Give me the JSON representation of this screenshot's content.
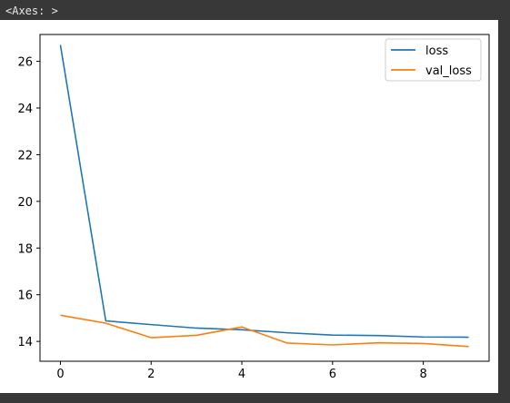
{
  "output": {
    "repr_text": "<Axes: >"
  },
  "chart_data": {
    "type": "line",
    "title": "",
    "xlabel": "",
    "ylabel": "",
    "x": [
      0,
      1,
      2,
      3,
      4,
      5,
      6,
      7,
      8,
      9
    ],
    "xlim": [
      -0.45,
      9.45
    ],
    "ylim": [
      13.15,
      27.15
    ],
    "xticks": [
      0,
      2,
      4,
      6,
      8
    ],
    "yticks": [
      14,
      16,
      18,
      20,
      22,
      24,
      26
    ],
    "grid": false,
    "legend_position": "upper right",
    "series": [
      {
        "name": "loss",
        "color": "#1f77b4",
        "values": [
          26.7,
          14.88,
          14.72,
          14.57,
          14.5,
          14.37,
          14.27,
          14.25,
          14.19,
          14.18
        ]
      },
      {
        "name": "val_loss",
        "color": "#ff7f0e",
        "values": [
          15.12,
          14.78,
          14.16,
          14.26,
          14.62,
          13.93,
          13.85,
          13.94,
          13.91,
          13.78
        ]
      }
    ]
  }
}
